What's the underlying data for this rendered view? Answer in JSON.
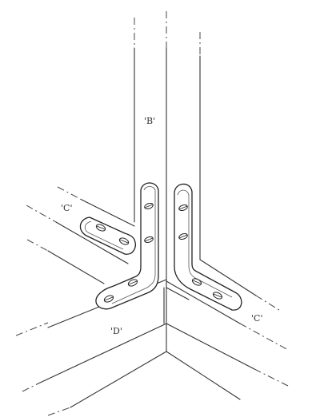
{
  "labels": {
    "board_b": "'B'",
    "board_c_left": "'C'",
    "board_c_right": "'C'",
    "board_d": "'D'"
  },
  "colors": {
    "line": "#333333",
    "background": "#ffffff"
  }
}
